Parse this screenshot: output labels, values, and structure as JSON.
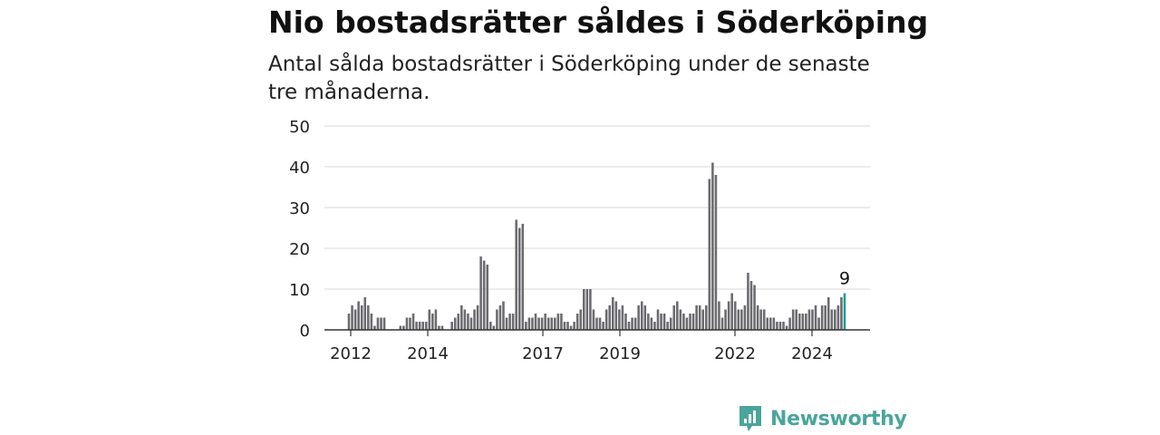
{
  "title": "Nio bostadsrätter såldes i Söderköping",
  "subtitle": "Antal sålda bostadsrätter i Söderköping under de senaste tre månaderna.",
  "brand": {
    "name": "Newsworthy",
    "icon": "newsworthy-logo-icon"
  },
  "colors": {
    "bar": "#6b6b6f",
    "highlight": "#1a9e98",
    "grid": "#d9d9d9",
    "axis": "#333333",
    "brand": "#4aa59c"
  },
  "chart_data": {
    "type": "bar",
    "ylim": [
      0,
      50
    ],
    "yticks": [
      0,
      10,
      20,
      30,
      40,
      50
    ],
    "xticks": [
      "2012",
      "2014",
      "2017",
      "2019",
      "2022",
      "2024"
    ],
    "grid": true,
    "highlight_label": "9",
    "values": [
      4,
      6,
      5,
      7,
      6,
      8,
      6,
      4,
      1,
      3,
      3,
      3,
      0,
      0,
      0,
      0,
      1,
      1,
      3,
      3,
      4,
      2,
      2,
      2,
      2,
      5,
      4,
      5,
      1,
      1,
      0,
      0,
      2,
      3,
      4,
      6,
      5,
      4,
      3,
      5,
      6,
      18,
      17,
      16,
      2,
      1,
      5,
      6,
      7,
      3,
      4,
      4,
      27,
      25,
      26,
      2,
      3,
      3,
      4,
      3,
      3,
      4,
      3,
      3,
      3,
      4,
      4,
      2,
      2,
      1,
      2,
      4,
      5,
      10,
      10,
      10,
      5,
      3,
      3,
      2,
      5,
      6,
      8,
      7,
      5,
      6,
      4,
      2,
      3,
      3,
      6,
      7,
      6,
      4,
      3,
      2,
      5,
      4,
      4,
      2,
      3,
      6,
      7,
      5,
      4,
      3,
      4,
      4,
      6,
      6,
      5,
      6,
      37,
      41,
      38,
      7,
      3,
      5,
      7,
      9,
      7,
      5,
      5,
      6,
      14,
      12,
      11,
      6,
      5,
      5,
      3,
      3,
      3,
      2,
      2,
      2,
      1,
      3,
      5,
      5,
      4,
      4,
      4,
      5,
      5,
      6,
      3,
      6,
      6,
      8,
      5,
      5,
      6,
      8,
      9
    ]
  }
}
